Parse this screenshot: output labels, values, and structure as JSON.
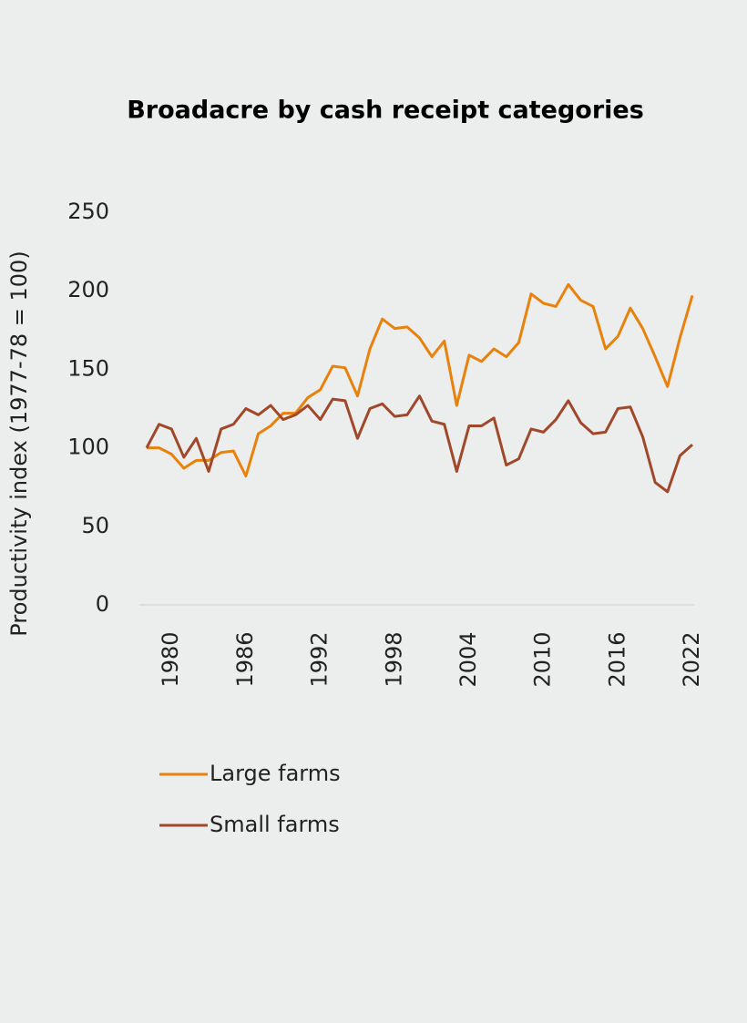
{
  "chart_data": {
    "type": "line",
    "title": "Broadacre by cash receipt categories",
    "y_label": "Productivity index (1977-78 = 100)",
    "x": [
      1978,
      1979,
      1980,
      1981,
      1982,
      1983,
      1984,
      1985,
      1986,
      1987,
      1988,
      1989,
      1990,
      1991,
      1992,
      1993,
      1994,
      1995,
      1996,
      1997,
      1998,
      1999,
      2000,
      2001,
      2002,
      2003,
      2004,
      2005,
      2006,
      2007,
      2008,
      2009,
      2010,
      2011,
      2012,
      2013,
      2014,
      2015,
      2016,
      2017,
      2018,
      2019,
      2020,
      2021,
      2022
    ],
    "series": [
      {
        "name": "Large farms",
        "color": "#e8820c",
        "values": [
          100,
          100,
          96,
          87,
          92,
          92,
          97,
          98,
          82,
          109,
          114,
          122,
          122,
          132,
          137,
          152,
          151,
          133,
          163,
          182,
          176,
          177,
          170,
          158,
          168,
          127,
          159,
          155,
          163,
          158,
          167,
          198,
          192,
          190,
          204,
          194,
          190,
          163,
          171,
          189,
          176,
          158,
          139,
          170,
          197
        ]
      },
      {
        "name": "Small farms",
        "color": "#a0482a",
        "values": [
          100,
          115,
          112,
          94,
          106,
          85,
          112,
          115,
          125,
          121,
          127,
          118,
          121,
          127,
          118,
          131,
          130,
          106,
          125,
          128,
          120,
          121,
          133,
          117,
          115,
          85,
          114,
          114,
          119,
          89,
          93,
          112,
          110,
          118,
          130,
          116,
          109,
          110,
          125,
          126,
          107,
          78,
          72,
          95,
          102
        ]
      }
    ],
    "xlim": [
      1978,
      2022
    ],
    "xticks": [
      1980,
      1986,
      1992,
      1998,
      2004,
      2010,
      2016,
      2022
    ],
    "ylim": [
      0,
      250
    ],
    "yticks": [
      0,
      50,
      100,
      150,
      200,
      250
    ],
    "grid": false,
    "legend": "bottom-left"
  }
}
